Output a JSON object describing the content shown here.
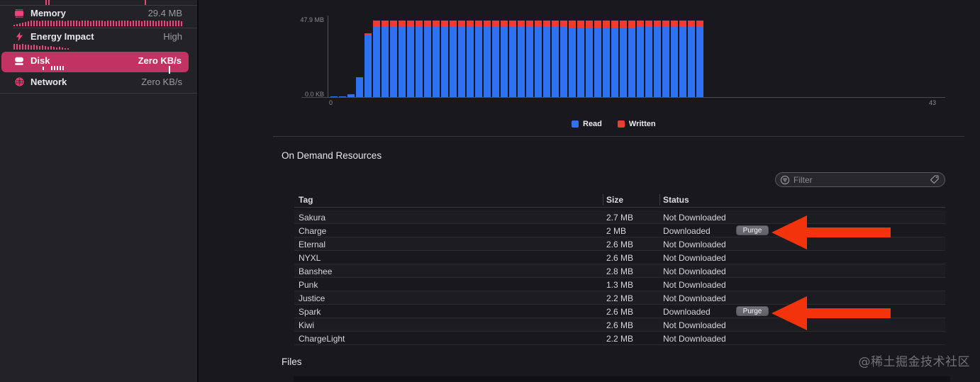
{
  "sidebar": {
    "accent_color": "#ee4479",
    "selected_bg_color": "#c23363",
    "items": [
      {
        "id": "memory",
        "icon": "memory-chip-icon",
        "label": "Memory",
        "value": "29.4 MB",
        "selected": false,
        "sparkline": [
          2,
          3,
          4,
          5,
          6,
          7,
          8,
          8,
          8,
          7,
          8,
          8,
          8,
          8,
          7,
          8,
          8,
          8,
          7,
          8,
          8,
          8,
          8,
          7,
          8,
          8,
          8,
          7,
          8,
          8,
          8,
          8,
          7,
          8,
          8,
          8,
          7,
          8,
          8,
          8,
          8,
          7,
          8,
          8,
          8,
          7,
          8,
          8,
          8,
          8,
          7,
          8,
          8,
          8,
          7,
          8,
          8,
          8,
          8,
          7
        ]
      },
      {
        "id": "energy",
        "icon": "energy-bolt-icon",
        "label": "Energy Impact",
        "value": "High",
        "selected": false,
        "sparkline": [
          8,
          8,
          7,
          8,
          7,
          7,
          6,
          7,
          6,
          5,
          6,
          5,
          4,
          5,
          4,
          3,
          4,
          3,
          2,
          2
        ]
      },
      {
        "id": "disk",
        "icon": "disk-icon",
        "label": "Disk",
        "value": "Zero KB/s",
        "selected": true,
        "sparkline": [
          5,
          0,
          0,
          6,
          6,
          6,
          6,
          6
        ],
        "sparkline_spike": 11
      },
      {
        "id": "network",
        "icon": "network-globe-icon",
        "label": "Network",
        "value": "Zero KB/s",
        "selected": false,
        "sparkline": []
      }
    ],
    "top_tick_groups": [
      {
        "x": 64,
        "values": [
          7,
          7
        ]
      },
      {
        "x": 204,
        "values": [
          7
        ]
      }
    ]
  },
  "chart_data": {
    "type": "bar",
    "stacked": true,
    "title": "",
    "y_axis": {
      "top_label": "47.9 MB",
      "bottom_label": "0.0 KB",
      "max_mb": 47.9
    },
    "x_axis": {
      "ticks": [
        "0",
        "43"
      ]
    },
    "legend": {
      "position": "bottom-center",
      "entries": [
        "Read",
        "Written"
      ]
    },
    "series": [
      {
        "name": "Read",
        "color": "#2e72f3",
        "values": [
          0.4,
          0.4,
          1.9,
          12.6,
          38.5,
          43.9,
          43.9,
          43.9,
          43.9,
          43.9,
          43.9,
          43.9,
          43.9,
          43.9,
          43.9,
          43.9,
          43.9,
          43.9,
          43.9,
          43.9,
          43.9,
          43.9,
          43.9,
          43.9,
          43.9,
          43.9,
          43.9,
          43.9,
          43.4,
          43.4,
          43.4,
          43.4,
          43.4,
          43.4,
          43.4,
          43.4,
          43.9,
          43.9,
          43.9,
          43.9,
          43.9,
          43.9,
          43.9,
          43.9
        ]
      },
      {
        "name": "Written",
        "color": "#f23a31",
        "values": [
          0,
          0,
          0,
          0,
          1.4,
          4,
          4,
          4,
          4,
          4,
          4,
          4,
          4,
          4,
          4,
          4,
          4,
          4,
          4,
          4,
          4,
          4,
          4,
          4,
          4,
          4,
          4,
          4,
          4.6,
          4.6,
          4.6,
          4.6,
          4.6,
          4.6,
          4.6,
          4.6,
          4.2,
          4.2,
          4.2,
          4.2,
          4.2,
          4.2,
          4.2,
          4.2
        ]
      }
    ]
  },
  "resources": {
    "title": "On Demand Resources",
    "filter": {
      "placeholder": "Filter"
    },
    "columns": [
      "Tag",
      "Size",
      "Status"
    ],
    "purge_label": "Purge",
    "rows": [
      {
        "tag": "Sakura",
        "size": "2.7 MB",
        "status": "Not Downloaded",
        "action": null,
        "annotated": false
      },
      {
        "tag": "Charge",
        "size": "2 MB",
        "status": "Downloaded",
        "action": "Purge",
        "annotated": true
      },
      {
        "tag": "Eternal",
        "size": "2.6 MB",
        "status": "Not Downloaded",
        "action": null,
        "annotated": false
      },
      {
        "tag": "NYXL",
        "size": "2.6 MB",
        "status": "Not Downloaded",
        "action": null,
        "annotated": false
      },
      {
        "tag": "Banshee",
        "size": "2.8 MB",
        "status": "Not Downloaded",
        "action": null,
        "annotated": false
      },
      {
        "tag": "Punk",
        "size": "1.3 MB",
        "status": "Not Downloaded",
        "action": null,
        "annotated": false
      },
      {
        "tag": "Justice",
        "size": "2.2 MB",
        "status": "Not Downloaded",
        "action": null,
        "annotated": false
      },
      {
        "tag": "Spark",
        "size": "2.6 MB",
        "status": "Downloaded",
        "action": "Purge",
        "annotated": true
      },
      {
        "tag": "Kiwi",
        "size": "2.6 MB",
        "status": "Not Downloaded",
        "action": null,
        "annotated": false
      },
      {
        "tag": "ChargeLight",
        "size": "2.2 MB",
        "status": "Not Downloaded",
        "action": null,
        "annotated": false
      }
    ]
  },
  "files": {
    "title": "Files"
  },
  "watermark": {
    "text": "@稀土掘金技术社区"
  },
  "annotations": {
    "arrow_color": "#f2330c",
    "arrows_point_at": [
      "Charge purge button",
      "Spark purge button"
    ]
  }
}
